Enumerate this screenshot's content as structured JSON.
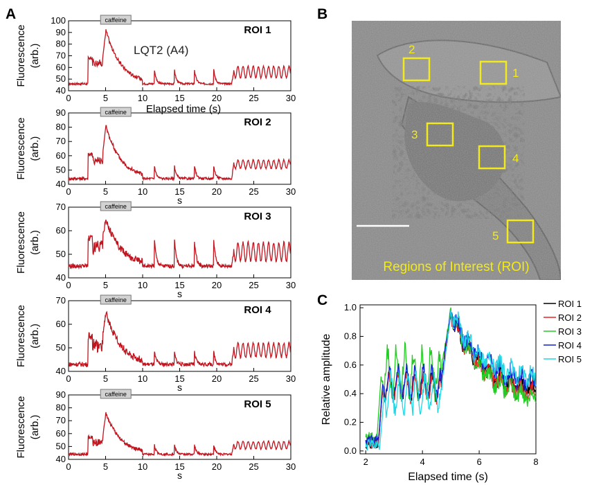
{
  "panel_labels": [
    "A",
    "B",
    "C"
  ],
  "panel_a": {
    "annotation": "LQT2 (A4)",
    "stimulus_label": "caffeine",
    "ylabel_line1": "Fluorescence",
    "ylabel_line2": "(arb.)",
    "xlabel_first": "Elapsed time (s)",
    "xlabel_other": "s",
    "line_color": "#c0141e"
  },
  "panel_b": {
    "caption": "Regions of Interest (ROI)",
    "roi_labels": [
      "1",
      "2",
      "3",
      "4",
      "5"
    ],
    "box_color": "#f2ea1a"
  },
  "chart_data": [
    {
      "type": "line",
      "title": "ROI 1",
      "xlabel": "Elapsed time (s)",
      "ylabel": "Fluorescence (arb.)",
      "xlim": [
        0,
        30
      ],
      "ylim": [
        40,
        100
      ],
      "xticks": [
        0,
        5,
        10,
        15,
        20,
        25,
        30
      ],
      "yticks": [
        40,
        50,
        60,
        70,
        80,
        90,
        100
      ],
      "trace": {
        "baseline": 46,
        "step": 68,
        "peak": 92,
        "plateau": 62,
        "spike": 58,
        "osc_mean": 56,
        "osc_amp": 5
      },
      "events": {
        "step_on": 2.6,
        "step_off": 3.2,
        "caffeine": [
          4.6,
          5.4
        ],
        "spikes": [
          11.6,
          14.3,
          17.0,
          19.6
        ],
        "osc_start": 22
      }
    },
    {
      "type": "line",
      "title": "ROI 2",
      "xlabel": "s",
      "ylabel": "Fluorescence (arb.)",
      "xlim": [
        0,
        30
      ],
      "ylim": [
        40,
        90
      ],
      "xticks": [
        0,
        5,
        10,
        15,
        20,
        25,
        30
      ],
      "yticks": [
        40,
        50,
        60,
        70,
        80,
        90
      ],
      "trace": {
        "baseline": 44,
        "step": 61,
        "peak": 81,
        "plateau": 58,
        "spike": 53,
        "osc_mean": 54,
        "osc_amp": 3
      },
      "events": {
        "step_on": 2.6,
        "step_off": 3.2,
        "caffeine": [
          4.6,
          5.4
        ],
        "spikes": [
          11.6,
          14.3,
          17.0,
          19.6
        ],
        "osc_start": 22
      }
    },
    {
      "type": "line",
      "title": "ROI 3",
      "xlabel": "s",
      "ylabel": "Fluorescence (arb.)",
      "xlim": [
        0,
        30
      ],
      "ylim": [
        40,
        70
      ],
      "xticks": [
        0,
        5,
        10,
        15,
        20,
        25,
        30
      ],
      "yticks": [
        40,
        50,
        60,
        70
      ],
      "trace": {
        "baseline": 45,
        "step": 57,
        "peak": 65,
        "plateau": 55,
        "spike": 56,
        "osc_mean": 51,
        "osc_amp": 4
      },
      "events": {
        "step_on": 2.6,
        "step_off": 3.2,
        "caffeine": [
          4.6,
          5.4
        ],
        "spikes": [
          11.6,
          14.3,
          17.0,
          19.6
        ],
        "osc_start": 22
      }
    },
    {
      "type": "line",
      "title": "ROI 4",
      "xlabel": "s",
      "ylabel": "Fluorescence (arb.)",
      "xlim": [
        0,
        30
      ],
      "ylim": [
        40,
        70
      ],
      "xticks": [
        0,
        5,
        10,
        15,
        20,
        25,
        30
      ],
      "yticks": [
        40,
        50,
        60,
        70
      ],
      "trace": {
        "baseline": 43,
        "step": 55,
        "peak": 65,
        "plateau": 53,
        "spike": 48,
        "osc_mean": 49,
        "osc_amp": 3
      },
      "events": {
        "step_on": 2.6,
        "step_off": 3.2,
        "caffeine": [
          4.6,
          5.4
        ],
        "spikes": [
          11.6,
          14.3,
          17.0,
          19.6
        ],
        "osc_start": 22
      }
    },
    {
      "type": "line",
      "title": "ROI 5",
      "xlabel": "s",
      "ylabel": "Fluorescence (arb.)",
      "xlim": [
        0,
        30
      ],
      "ylim": [
        40,
        90
      ],
      "xticks": [
        0,
        5,
        10,
        15,
        20,
        25,
        30
      ],
      "yticks": [
        40,
        50,
        60,
        70,
        80,
        90
      ],
      "trace": {
        "baseline": 44,
        "step": 57,
        "peak": 76,
        "plateau": 54,
        "spike": 51,
        "osc_mean": 51,
        "osc_amp": 3
      },
      "events": {
        "step_on": 2.6,
        "step_off": 3.2,
        "caffeine": [
          4.6,
          5.4
        ],
        "spikes": [
          11.6,
          14.3,
          17.0,
          19.6
        ],
        "osc_start": 22
      }
    },
    {
      "type": "line",
      "title": "",
      "xlabel": "Elapsed time (s)",
      "ylabel": "Relative amplitude",
      "xlim": [
        1.8,
        8
      ],
      "ylim": [
        -0.02,
        1.02
      ],
      "xticks": [
        2,
        4,
        6,
        8
      ],
      "yticks": [
        0.0,
        0.2,
        0.4,
        0.6,
        0.8,
        1.0
      ],
      "ytick_labels": [
        "0.0",
        "0.2",
        "0.4",
        "0.6",
        "0.8",
        "1.0"
      ],
      "legend": "right",
      "series": [
        {
          "name": "ROI 1",
          "color": "#000000",
          "baseline": 0.05,
          "rise_at": 2.45,
          "plateau": 0.45,
          "osc": 0.08,
          "peak": 0.97,
          "end": 0.38
        },
        {
          "name": "ROI 2",
          "color": "#ee2020",
          "baseline": 0.06,
          "rise_at": 2.45,
          "plateau": 0.44,
          "osc": 0.08,
          "peak": 0.97,
          "end": 0.36
        },
        {
          "name": "ROI 3",
          "color": "#22cc22",
          "baseline": 0.1,
          "rise_at": 2.4,
          "plateau": 0.55,
          "osc": 0.14,
          "peak": 0.99,
          "end": 0.33
        },
        {
          "name": "ROI 4",
          "color": "#1020d0",
          "baseline": 0.07,
          "rise_at": 2.45,
          "plateau": 0.48,
          "osc": 0.1,
          "peak": 0.98,
          "end": 0.45
        },
        {
          "name": "ROI 5",
          "color": "#22d6e6",
          "baseline": 0.04,
          "rise_at": 2.5,
          "plateau": 0.4,
          "osc": 0.12,
          "peak": 0.98,
          "end": 0.48
        }
      ]
    }
  ]
}
